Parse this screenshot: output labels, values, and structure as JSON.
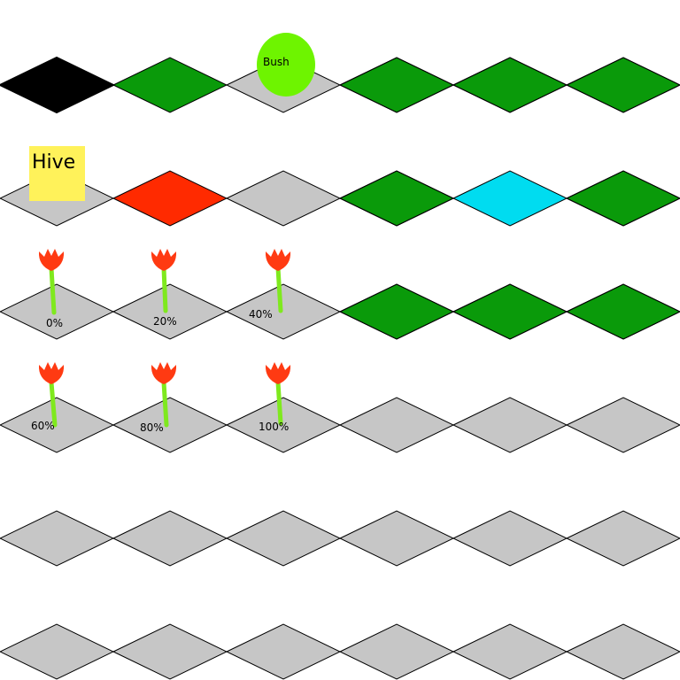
{
  "colors": {
    "empty": "#c6c6c6",
    "void": "#000000",
    "grass": "#0a9a0a",
    "lava": "#ff2a00",
    "water": "#00dcf0",
    "bush": "#6ef400",
    "hive": "#fff25a",
    "flower_head": "#ff3a12",
    "flower_stem": "#7fe91e",
    "outline": "#000000"
  },
  "labels": {
    "bush": "Bush",
    "hive": "Hive"
  },
  "flowers": [
    {
      "growth": "0%"
    },
    {
      "growth": "20%"
    },
    {
      "growth": "40%"
    },
    {
      "growth": "60%"
    },
    {
      "growth": "80%"
    },
    {
      "growth": "100%"
    }
  ],
  "tiles": [
    [
      "void",
      "grass",
      "empty",
      "water-edge-south",
      "water-edge-north",
      "water-edge-west"
    ],
    [
      "empty",
      "lava",
      "empty",
      "water-corner-south-east",
      "water-full",
      "water-edge-east"
    ],
    [
      "empty",
      "empty",
      "empty",
      "water-corner-east",
      "water-edge-southwest",
      "water-edge-north-small"
    ],
    [
      "empty",
      "empty",
      "empty",
      "empty",
      "empty",
      "empty"
    ],
    [
      "empty",
      "empty",
      "empty",
      "empty",
      "empty",
      "empty"
    ],
    [
      "empty",
      "empty",
      "empty",
      "empty",
      "empty",
      "empty"
    ]
  ]
}
